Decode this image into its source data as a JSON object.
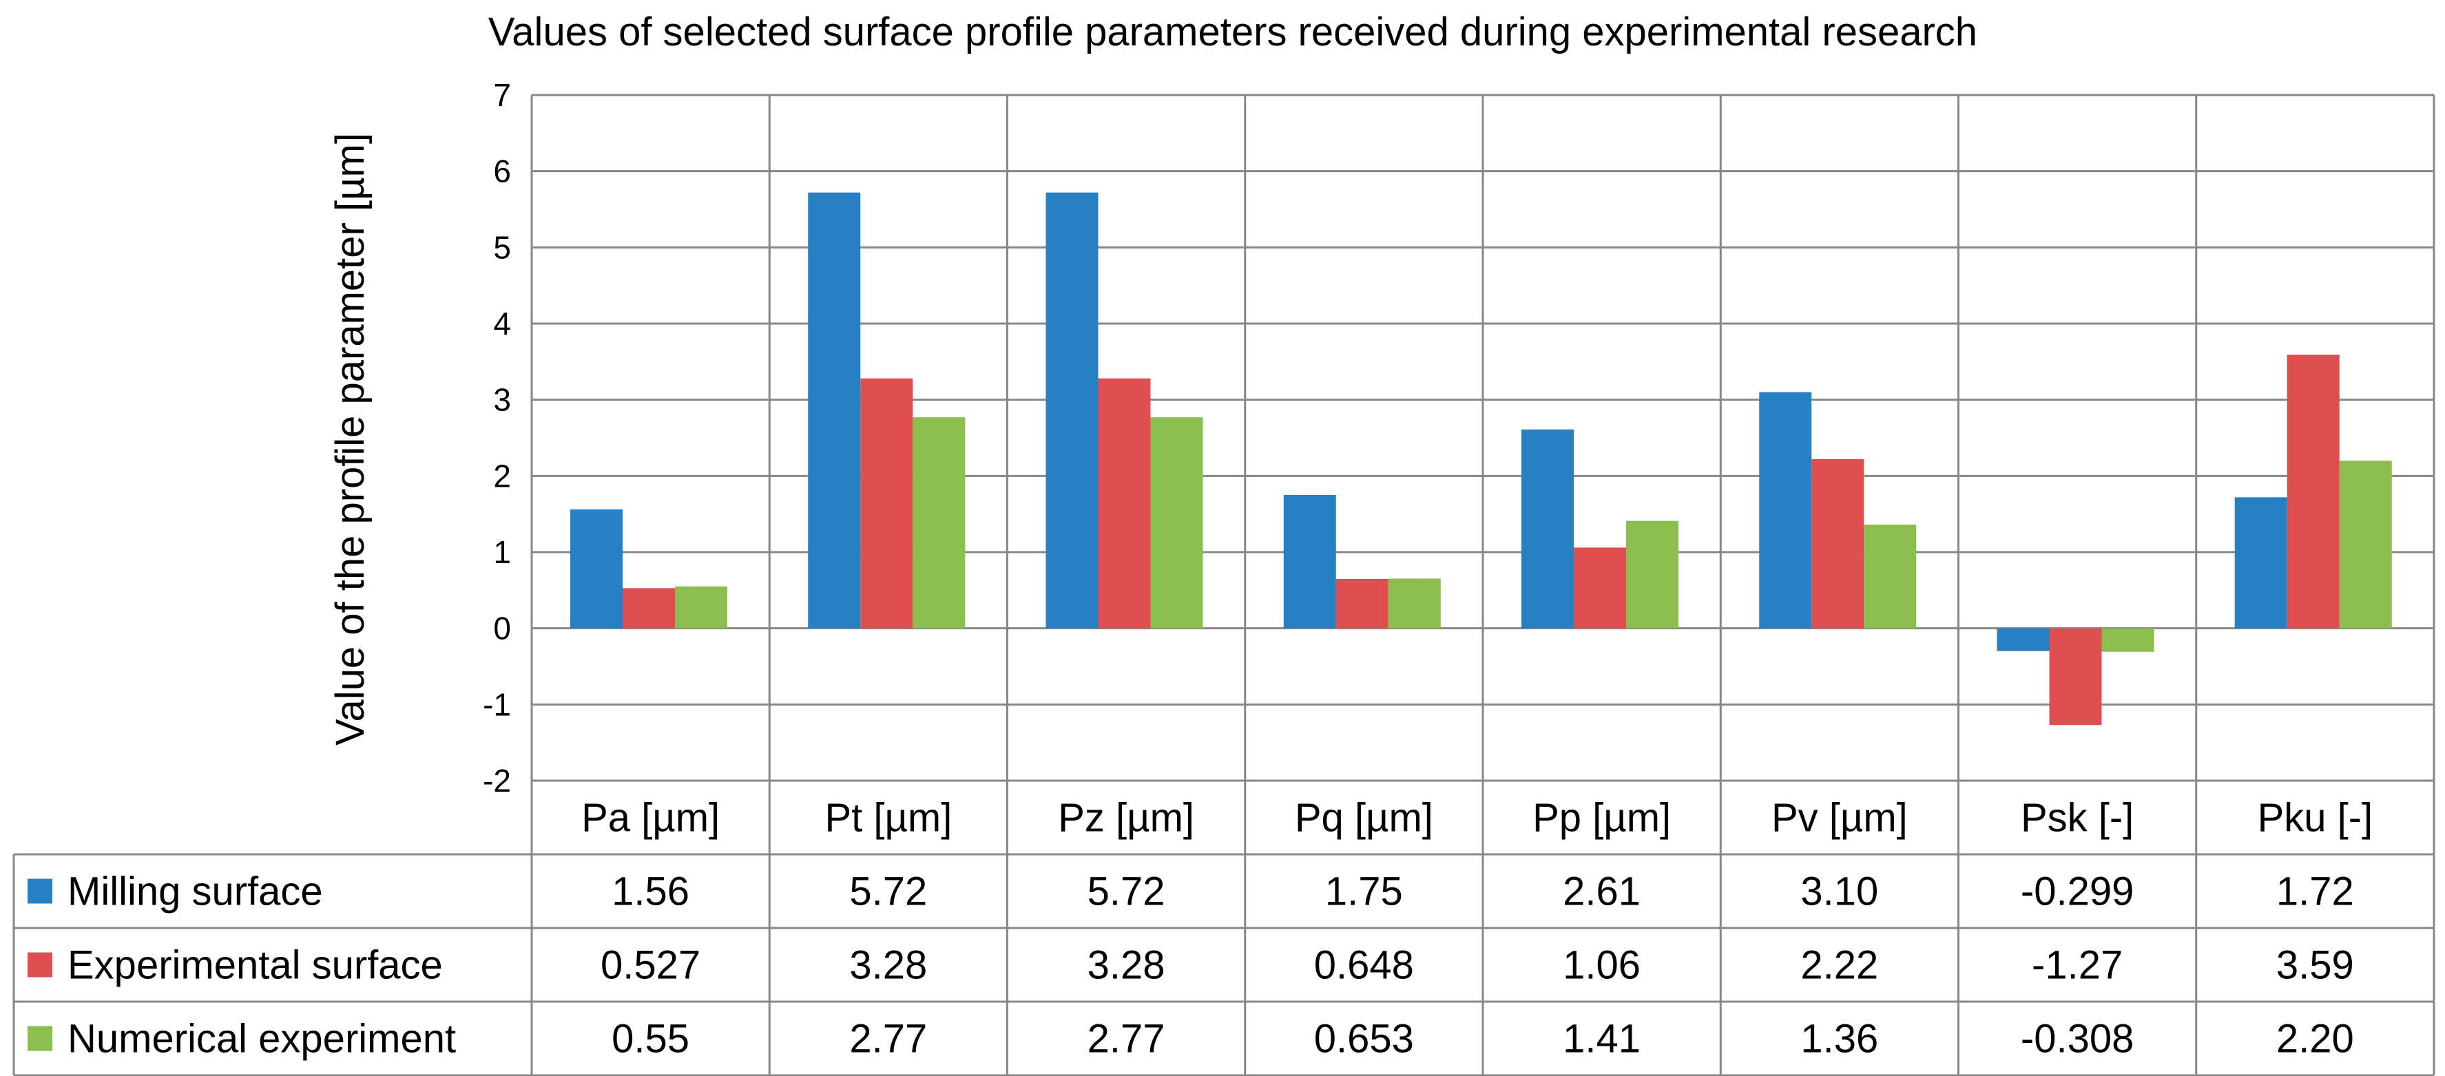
{
  "chart_data": {
    "type": "bar",
    "title": "Values of selected surface profile parameters received during experimental research",
    "xlabel": "",
    "ylabel": "Value of the profile parameter [µm]",
    "ylim": [
      -2,
      7
    ],
    "yticks": [
      7,
      6,
      5,
      4,
      3,
      2,
      1,
      0,
      -1,
      -2
    ],
    "grid": true,
    "legend_placement": "data-table",
    "categories": [
      "Pa [µm]",
      "Pt [µm]",
      "Pz [µm]",
      "Pq [µm]",
      "Pp [µm]",
      "Pv [µm]",
      "Psk [-]",
      "Pku [-]"
    ],
    "series": [
      {
        "name": "Milling surface",
        "color": "#2780c4",
        "values": [
          1.56,
          5.72,
          5.72,
          1.75,
          2.61,
          3.1,
          -0.299,
          1.72
        ],
        "labels": [
          "1.56",
          "5.72",
          "5.72",
          "1.75",
          "2.61",
          "3.10",
          "-0.299",
          "1.72"
        ]
      },
      {
        "name": "Experimental surface",
        "color": "#e04f4f",
        "values": [
          0.527,
          3.28,
          3.28,
          0.648,
          1.06,
          2.22,
          -1.27,
          3.59
        ],
        "labels": [
          "0.527",
          "3.28",
          "3.28",
          "0.648",
          "1.06",
          "2.22",
          "-1.27",
          "3.59"
        ]
      },
      {
        "name": "Numerical experiment",
        "color": "#8bbd4f",
        "values": [
          0.55,
          2.77,
          2.77,
          0.653,
          1.41,
          1.36,
          -0.308,
          2.2
        ],
        "labels": [
          "0.55",
          "2.77",
          "2.77",
          "0.653",
          "1.41",
          "1.36",
          "-0.308",
          "2.20"
        ]
      }
    ]
  }
}
